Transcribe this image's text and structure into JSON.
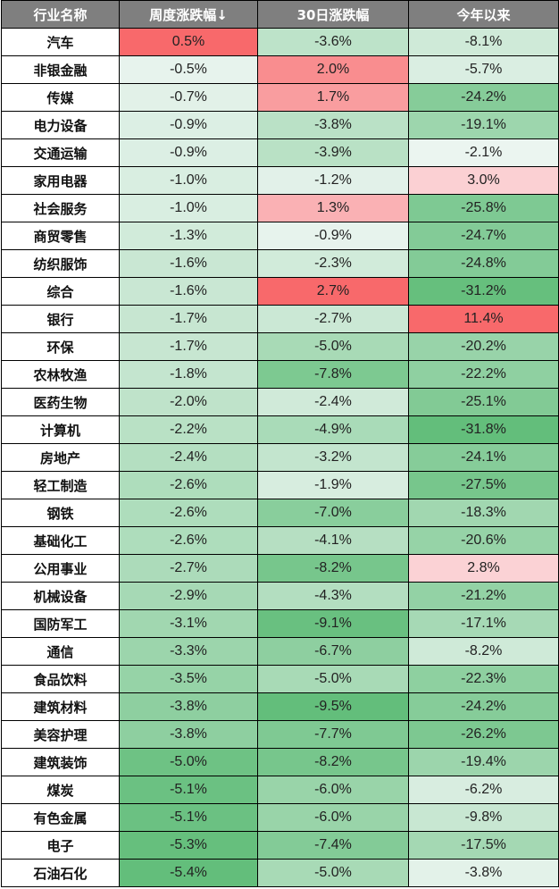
{
  "chart_data": {
    "type": "table",
    "columns": [
      "行业名称",
      "周度涨跌幅↓",
      "30日涨跌幅",
      "今年以来"
    ],
    "rows": [
      {
        "name": "汽车",
        "week": "0.5%",
        "d30": "-3.6%",
        "ytd": "-8.1%"
      },
      {
        "name": "非银金融",
        "week": "-0.5%",
        "d30": "2.0%",
        "ytd": "-5.7%"
      },
      {
        "name": "传媒",
        "week": "-0.7%",
        "d30": "1.7%",
        "ytd": "-24.2%"
      },
      {
        "name": "电力设备",
        "week": "-0.9%",
        "d30": "-3.8%",
        "ytd": "-19.1%"
      },
      {
        "name": "交通运输",
        "week": "-0.9%",
        "d30": "-3.9%",
        "ytd": "-2.1%"
      },
      {
        "name": "家用电器",
        "week": "-1.0%",
        "d30": "-1.2%",
        "ytd": "3.0%"
      },
      {
        "name": "社会服务",
        "week": "-1.0%",
        "d30": "1.3%",
        "ytd": "-25.8%"
      },
      {
        "name": "商贸零售",
        "week": "-1.3%",
        "d30": "-0.9%",
        "ytd": "-24.7%"
      },
      {
        "name": "纺织服饰",
        "week": "-1.6%",
        "d30": "-2.3%",
        "ytd": "-24.8%"
      },
      {
        "name": "综合",
        "week": "-1.6%",
        "d30": "2.7%",
        "ytd": "-31.2%"
      },
      {
        "name": "银行",
        "week": "-1.7%",
        "d30": "-2.7%",
        "ytd": "11.4%"
      },
      {
        "name": "环保",
        "week": "-1.7%",
        "d30": "-5.0%",
        "ytd": "-20.2%"
      },
      {
        "name": "农林牧渔",
        "week": "-1.8%",
        "d30": "-7.8%",
        "ytd": "-22.2%"
      },
      {
        "name": "医药生物",
        "week": "-2.0%",
        "d30": "-2.4%",
        "ytd": "-25.1%"
      },
      {
        "name": "计算机",
        "week": "-2.2%",
        "d30": "-4.9%",
        "ytd": "-31.8%"
      },
      {
        "name": "房地产",
        "week": "-2.4%",
        "d30": "-3.2%",
        "ytd": "-24.1%"
      },
      {
        "name": "轻工制造",
        "week": "-2.6%",
        "d30": "-1.9%",
        "ytd": "-27.5%"
      },
      {
        "name": "钢铁",
        "week": "-2.6%",
        "d30": "-7.0%",
        "ytd": "-18.3%"
      },
      {
        "name": "基础化工",
        "week": "-2.6%",
        "d30": "-4.1%",
        "ytd": "-20.6%"
      },
      {
        "name": "公用事业",
        "week": "-2.7%",
        "d30": "-8.2%",
        "ytd": "2.8%"
      },
      {
        "name": "机械设备",
        "week": "-2.9%",
        "d30": "-4.3%",
        "ytd": "-21.2%"
      },
      {
        "name": "国防军工",
        "week": "-3.1%",
        "d30": "-9.1%",
        "ytd": "-17.1%"
      },
      {
        "name": "通信",
        "week": "-3.3%",
        "d30": "-6.7%",
        "ytd": "-8.2%"
      },
      {
        "name": "食品饮料",
        "week": "-3.5%",
        "d30": "-5.0%",
        "ytd": "-22.3%"
      },
      {
        "name": "建筑材料",
        "week": "-3.8%",
        "d30": "-9.5%",
        "ytd": "-24.2%"
      },
      {
        "name": "美容护理",
        "week": "-3.8%",
        "d30": "-7.7%",
        "ytd": "-26.2%"
      },
      {
        "name": "建筑装饰",
        "week": "-5.0%",
        "d30": "-8.2%",
        "ytd": "-19.4%"
      },
      {
        "name": "煤炭",
        "week": "-5.1%",
        "d30": "-6.0%",
        "ytd": "-6.2%"
      },
      {
        "name": "有色金属",
        "week": "-5.1%",
        "d30": "-6.0%",
        "ytd": "-9.8%"
      },
      {
        "name": "电子",
        "week": "-5.3%",
        "d30": "-7.4%",
        "ytd": "-17.5%"
      },
      {
        "name": "石油石化",
        "week": "-5.4%",
        "d30": "-5.0%",
        "ytd": "-3.8%"
      }
    ],
    "colors": {
      "header_bg": "#7f7f7f",
      "positive": "#f8696b",
      "negative": "#63be7b",
      "neutral": "#fcfcff"
    }
  }
}
